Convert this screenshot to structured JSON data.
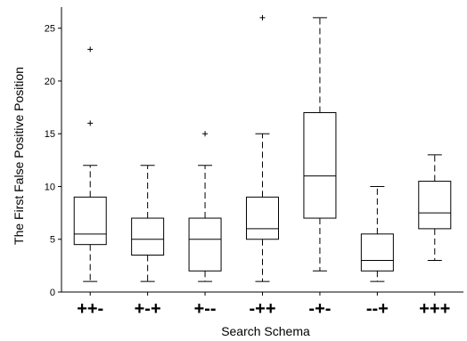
{
  "chart_data": {
    "type": "box",
    "title": "",
    "xlabel": "Search Schema",
    "ylabel": "The First False Positive Position",
    "ylim": [
      0,
      27
    ],
    "yticks": [
      0,
      5,
      10,
      15,
      20,
      25
    ],
    "grid": false,
    "categories": [
      "++-",
      "+-+",
      "+--",
      "-++",
      "-+-",
      "--+",
      "+++"
    ],
    "boxes": [
      {
        "category": "++-",
        "whisker_low": 1,
        "q1": 4.5,
        "median": 5.5,
        "q3": 9,
        "whisker_high": 12,
        "outliers": [
          16,
          23
        ]
      },
      {
        "category": "+-+",
        "whisker_low": 1,
        "q1": 3.5,
        "median": 5,
        "q3": 7,
        "whisker_high": 12,
        "outliers": []
      },
      {
        "category": "+--",
        "whisker_low": 1,
        "q1": 2,
        "median": 5,
        "q3": 7,
        "whisker_high": 12,
        "outliers": [
          15
        ]
      },
      {
        "category": "-++",
        "whisker_low": 1,
        "q1": 5,
        "median": 6,
        "q3": 9,
        "whisker_high": 15,
        "outliers": [
          26
        ]
      },
      {
        "category": "-+-",
        "whisker_low": 2,
        "q1": 7,
        "median": 11,
        "q3": 17,
        "whisker_high": 26,
        "outliers": []
      },
      {
        "category": "--+",
        "whisker_low": 1,
        "q1": 2,
        "median": 3,
        "q3": 5.5,
        "whisker_high": 10,
        "outliers": []
      },
      {
        "category": "+++",
        "whisker_low": 3,
        "q1": 6,
        "median": 7.5,
        "q3": 10.5,
        "whisker_high": 13,
        "outliers": []
      }
    ],
    "colors": {
      "box": "#000000",
      "background": "#ffffff"
    }
  }
}
